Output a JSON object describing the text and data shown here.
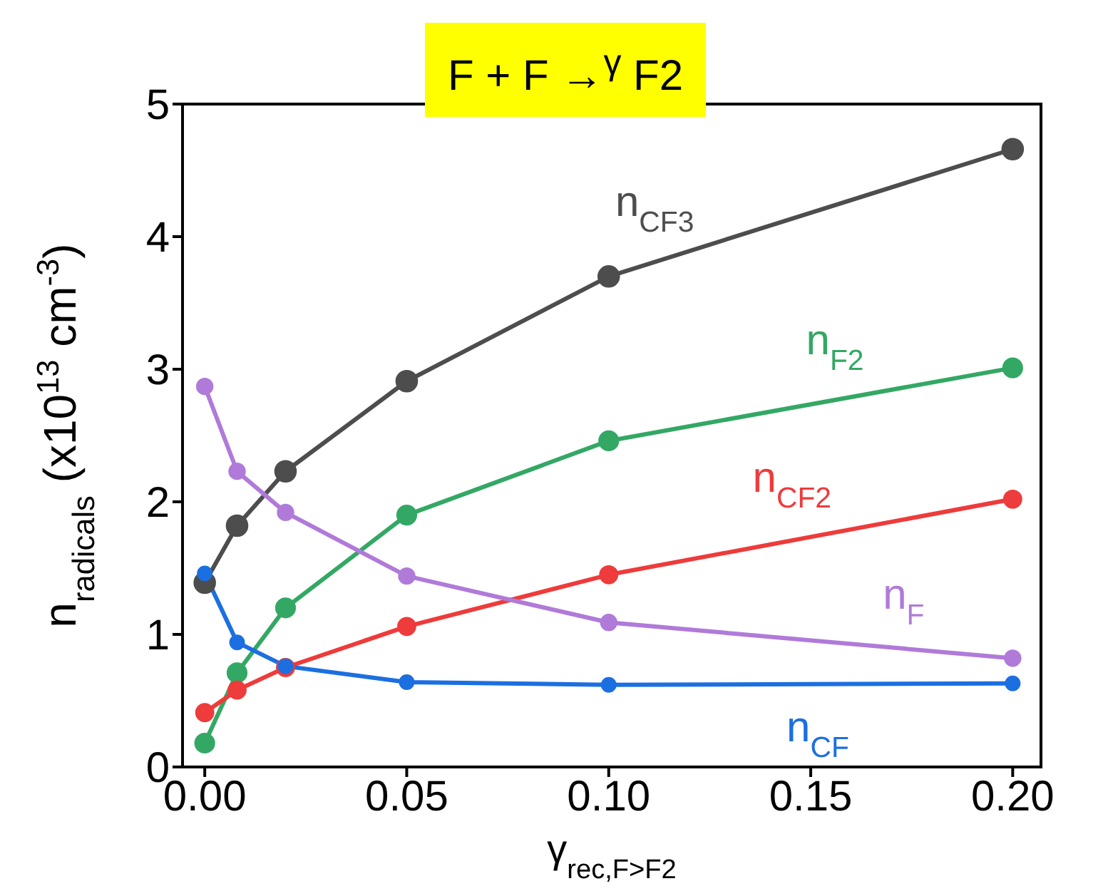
{
  "chart_data": {
    "type": "line",
    "title": "F + F →$^{γ}$ F2",
    "xlabel": "γ$_{rec,F>F2}$",
    "ylabel": "n$_{radicals}$ (x10$^{13}$ cm$^{-3}$)",
    "x": [
      0,
      0.008,
      0.02,
      0.05,
      0.1,
      0.2
    ],
    "series": [
      {
        "name": "n$_{CF3}$",
        "color": "#4d4d4d",
        "values": [
          1.39,
          1.82,
          2.23,
          2.91,
          3.7,
          4.66
        ]
      },
      {
        "name": "n$_{F2}$",
        "color": "#33a864",
        "values": [
          0.18,
          0.71,
          1.2,
          1.9,
          2.46,
          3.01
        ]
      },
      {
        "name": "n$_{CF2}$",
        "color": "#ee3b3b",
        "values": [
          0.41,
          0.58,
          0.75,
          1.06,
          1.45,
          2.02
        ]
      },
      {
        "name": "n$_{F}$",
        "color": "#b07ad9",
        "values": [
          2.87,
          2.23,
          1.92,
          1.44,
          1.09,
          0.82
        ]
      },
      {
        "name": "n$_{CF}$",
        "color": "#1c6fe0",
        "values": [
          1.46,
          0.94,
          0.76,
          0.64,
          0.62,
          0.63
        ]
      }
    ],
    "xlim": [
      -0.0055,
      0.207
    ],
    "xticks": [
      {
        "value": 0,
        "label": "0.00"
      },
      {
        "value": 0.05,
        "label": "0.05"
      },
      {
        "value": 0.1,
        "label": "0.10"
      },
      {
        "value": 0.15,
        "label": "0.15"
      },
      {
        "value": 0.2,
        "label": "0.20"
      }
    ],
    "ylim": [
      0,
      5
    ],
    "yticks": [
      0,
      1,
      2,
      3,
      4,
      5
    ],
    "marker": "circle",
    "line_style": "solid",
    "grid": false,
    "legend": false
  }
}
